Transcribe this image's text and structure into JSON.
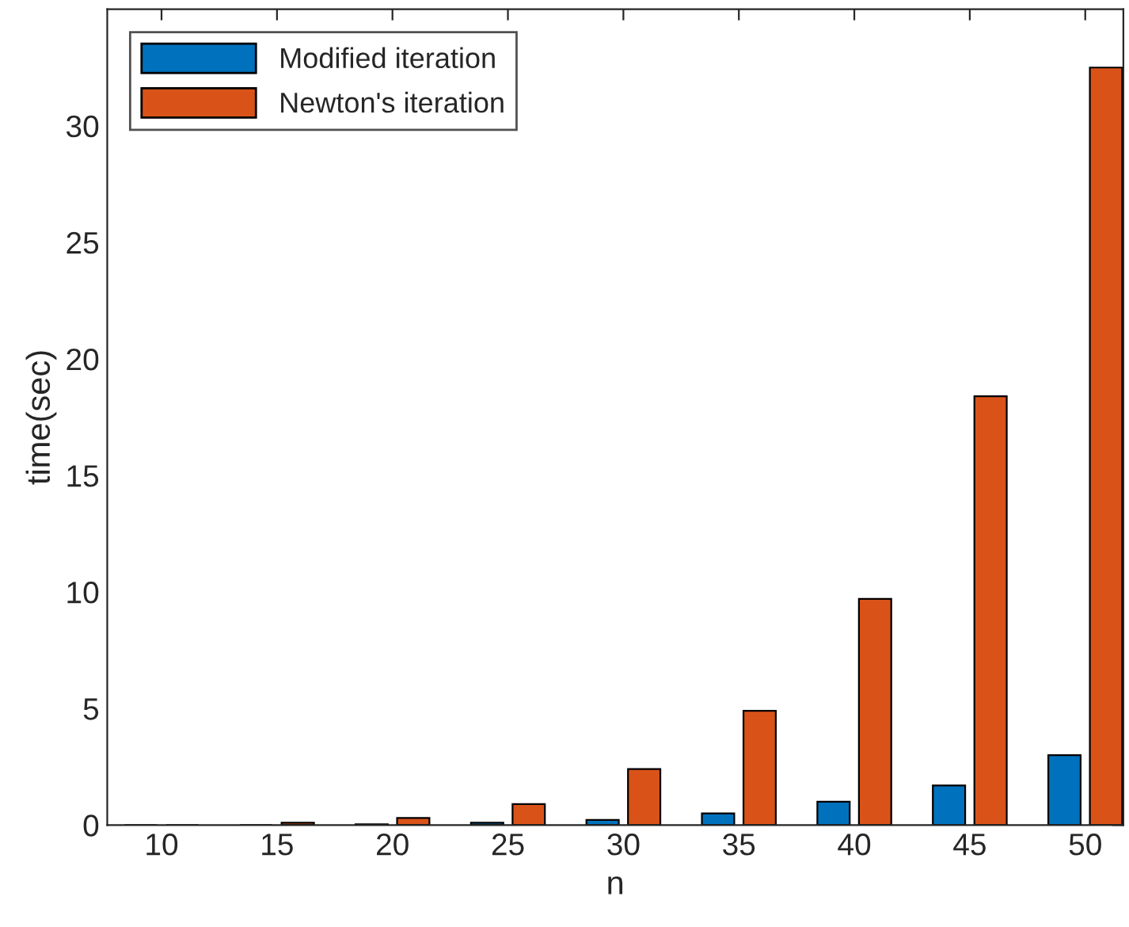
{
  "chart_data": {
    "type": "bar",
    "xlabel": "n",
    "ylabel": "time(sec)",
    "categories": [
      "10",
      "15",
      "20",
      "25",
      "30",
      "35",
      "40",
      "45",
      "50"
    ],
    "series": [
      {
        "name": "Modified iteration",
        "color": "#0072bd",
        "values": [
          null,
          null,
          0.03,
          0.1,
          0.22,
          0.5,
          1.0,
          1.7,
          3.0
        ]
      },
      {
        "name": "Newton's iteration",
        "color": "#d95319",
        "values": [
          null,
          0.1,
          0.3,
          0.9,
          2.4,
          4.9,
          9.7,
          18.4,
          32.5
        ]
      }
    ],
    "ylim": [
      0,
      35
    ],
    "yticks": [
      0,
      5,
      10,
      15,
      20,
      25,
      30
    ],
    "grid": false,
    "legend": "top left"
  }
}
